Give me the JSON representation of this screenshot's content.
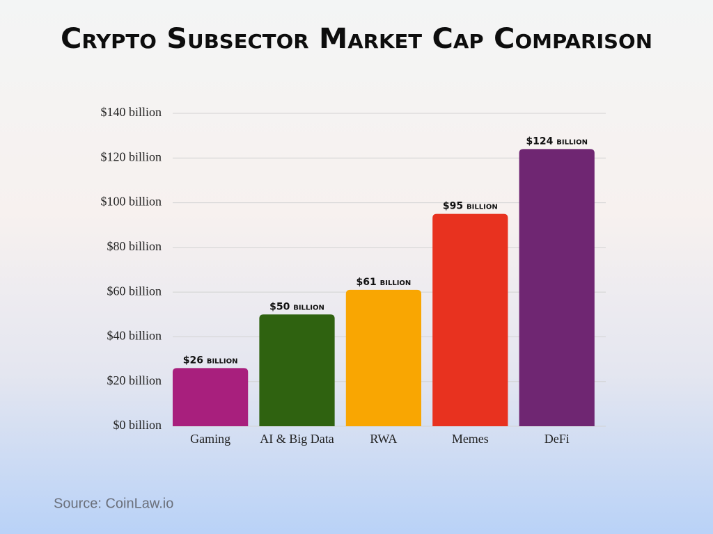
{
  "chart_data": {
    "type": "bar",
    "title": "Crypto Subsector Market Cap Comparison",
    "categories": [
      "Gaming",
      "AI & Big Data",
      "RWA",
      "Memes",
      "DeFi"
    ],
    "values": [
      26,
      50,
      61,
      95,
      124
    ],
    "value_labels": [
      "$26 billion",
      "$50 billion",
      "$61 billion",
      "$95 billion",
      "$124 billion"
    ],
    "colors": [
      "#a81f7d",
      "#2f6210",
      "#f9a602",
      "#e8321f",
      "#6f2672"
    ],
    "ylim": [
      0,
      140
    ],
    "yticks": [
      {
        "value": 0,
        "label": "$0 billion"
      },
      {
        "value": 20,
        "label": "$20 billion"
      },
      {
        "value": 40,
        "label": "$40 billion"
      },
      {
        "value": 60,
        "label": "$60 billion"
      },
      {
        "value": 80,
        "label": "$80 billion"
      },
      {
        "value": 100,
        "label": "$100 billion"
      },
      {
        "value": 120,
        "label": "$120 billion"
      },
      {
        "value": 140,
        "label": "$140 billion"
      }
    ],
    "grid": true,
    "source": "Source: CoinLaw.io"
  }
}
